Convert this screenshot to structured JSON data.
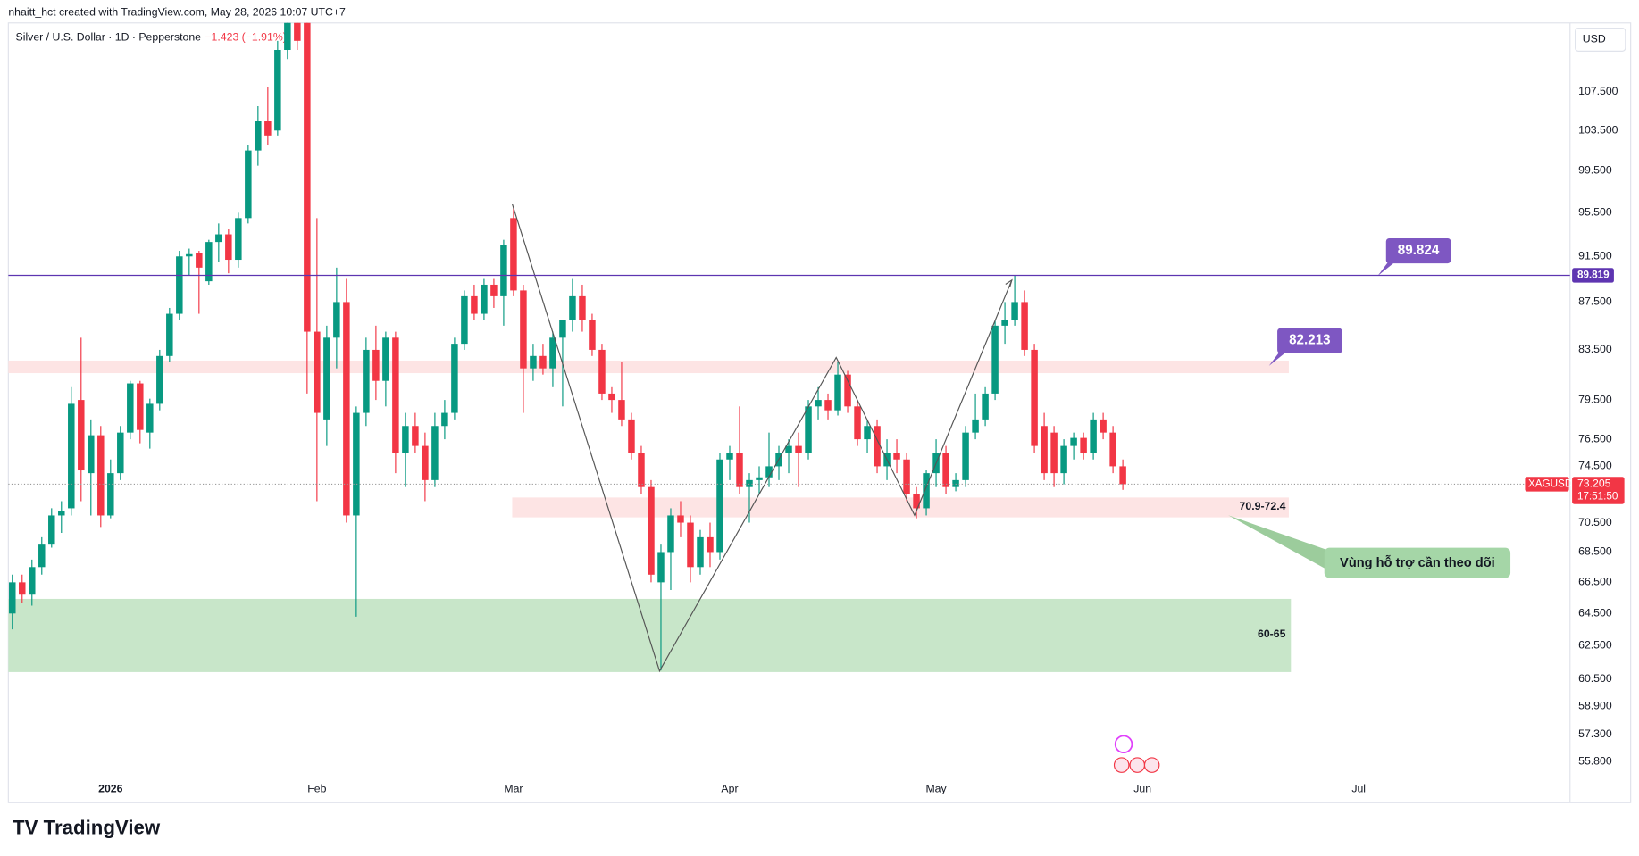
{
  "header": {
    "credit": "nhaitt_hct created with TradingView.com, May 28, 2026 10:07 UTC+7",
    "symbol": "Silver / U.S. Dollar · 1D · Pepperstone",
    "change": "−1.423 (−1.91%)",
    "currency": "USD"
  },
  "chart_data": {
    "type": "candlestick",
    "up_color": "#089981",
    "down_color": "#f23645",
    "log_scale": true,
    "grid": false,
    "open": [
      64.5,
      66.5,
      65.7,
      67.5,
      69,
      71,
      71.5,
      79.5,
      74,
      76.8,
      71,
      74,
      77,
      80.8,
      77,
      79.2,
      83,
      86.5,
      91.5,
      91.8,
      89.3,
      92.8,
      93.5,
      91.2,
      95,
      101.5,
      104.5,
      103.5,
      112,
      116,
      118,
      85,
      78,
      84.5,
      87.5,
      71,
      78.5,
      83.5,
      81,
      84.5,
      75.5,
      77.5,
      76,
      73.5,
      77.5,
      78.5,
      84,
      88,
      86.5,
      89,
      88,
      95,
      88.5,
      82,
      83,
      82,
      84.5,
      86,
      88,
      86,
      83.5,
      80,
      79.5,
      78,
      75.5,
      73,
      66.5,
      68.5,
      71,
      70.5,
      67.5,
      69.5,
      68.5,
      75,
      75.5,
      73,
      73.5,
      73.7,
      74.5,
      75.5,
      76,
      75.5,
      79,
      79.5,
      78.7,
      81.5,
      79,
      76.5,
      77.5,
      74.5,
      75.5,
      75,
      72.5,
      71.5,
      74,
      75.5,
      73,
      73.5,
      77,
      78,
      80,
      85.5,
      86,
      87.5,
      83.5,
      77.5,
      77,
      74,
      76,
      76.6,
      75.5,
      78,
      77,
      74.5
    ],
    "high": [
      67,
      67,
      68,
      69.5,
      71.5,
      72,
      80.5,
      84.5,
      78,
      77.5,
      75,
      77.5,
      81,
      81,
      79.6,
      83.5,
      87,
      92,
      92.2,
      92,
      93,
      94.5,
      94,
      95.5,
      102,
      106,
      108,
      113,
      118,
      121,
      121,
      95,
      85.5,
      90.5,
      89.5,
      79,
      84.5,
      85.5,
      85,
      85,
      78.5,
      78.5,
      77,
      78.5,
      79.5,
      84.5,
      88.5,
      89,
      89.5,
      89.5,
      93,
      96,
      89,
      84,
      84,
      85,
      86,
      89.5,
      89,
      86.5,
      84,
      80.5,
      82.5,
      78.5,
      76,
      73.5,
      69,
      71.5,
      72,
      71,
      70,
      70.5,
      75.5,
      76,
      79,
      74,
      74.5,
      77,
      76,
      76.5,
      77,
      79.5,
      80.5,
      80,
      82.5,
      81.8,
      79.5,
      78,
      78,
      76.5,
      76.5,
      75.5,
      73,
      74.2,
      76.5,
      76,
      74,
      77.5,
      80,
      80.5,
      86,
      87.5,
      89.8,
      88.5,
      84,
      78.5,
      77.5,
      76.5,
      77,
      77,
      78.5,
      78.5,
      77.5,
      75
    ],
    "low": [
      63.5,
      65.2,
      65,
      67,
      68.8,
      69.8,
      71,
      72,
      71,
      70.2,
      70.8,
      73.5,
      76.5,
      76.2,
      75.8,
      78.7,
      82.5,
      86,
      89.8,
      86.5,
      89,
      91,
      90,
      90.5,
      94.5,
      100,
      102,
      103,
      111,
      112,
      80,
      72,
      76,
      82,
      70.5,
      64.3,
      77.5,
      79.5,
      79,
      74,
      73,
      75.5,
      72,
      73,
      76.5,
      78,
      83.5,
      86,
      86,
      87,
      85.5,
      88,
      78.5,
      81,
      81.5,
      80.5,
      79,
      85,
      85,
      83,
      79.5,
      78.5,
      77.5,
      75,
      72.5,
      66.5,
      61,
      66,
      69.5,
      66.5,
      67,
      67.5,
      68,
      73.5,
      72.5,
      70.5,
      72.5,
      73,
      73.5,
      74,
      73,
      75,
      78,
      78,
      78.3,
      78.5,
      76,
      75.5,
      74,
      73.5,
      74,
      72,
      70.8,
      71,
      73,
      72.5,
      72.7,
      73,
      76.5,
      77.5,
      79.5,
      84,
      85.5,
      83,
      75.5,
      73.5,
      73,
      73.2,
      75,
      75,
      75,
      76.5,
      74,
      72.8
    ],
    "close": [
      66.5,
      65.7,
      67.5,
      69,
      71,
      71.3,
      79.2,
      74.2,
      76.8,
      71,
      74,
      77,
      80.8,
      77.2,
      79.2,
      83,
      86.5,
      91.5,
      91.7,
      90.5,
      92.8,
      93.5,
      91.2,
      95,
      101.5,
      104.5,
      103,
      112,
      116,
      113,
      85,
      78.5,
      84.5,
      87.5,
      71,
      78.5,
      83.5,
      81,
      84.5,
      75.5,
      77.5,
      76,
      73.5,
      77.5,
      78.5,
      84,
      88,
      86.5,
      89,
      88,
      92.5,
      88.5,
      82,
      83,
      82,
      84.5,
      86,
      88,
      86,
      83.5,
      80,
      79.5,
      78,
      75.5,
      73,
      67,
      68.5,
      71,
      70.5,
      67.5,
      69.5,
      68.5,
      75,
      75.5,
      73,
      73.5,
      73.7,
      74.5,
      75.5,
      76,
      75.5,
      79,
      79.5,
      78.7,
      81.5,
      79,
      76.5,
      77.5,
      74.5,
      75.5,
      75,
      72.5,
      71.5,
      74,
      75.5,
      73,
      73.5,
      77,
      78,
      80,
      85.5,
      86,
      87.5,
      83.5,
      76,
      74,
      74,
      76,
      76.6,
      75.5,
      78,
      77,
      74.5,
      73.205
    ],
    "xlim": [
      -0.4,
      158.5
    ],
    "xticks": [
      {
        "value": 10,
        "label": "2026"
      },
      {
        "value": 31,
        "label": "Feb"
      },
      {
        "value": 51,
        "label": "Mar"
      },
      {
        "value": 73,
        "label": "Apr"
      },
      {
        "value": 94,
        "label": "May"
      },
      {
        "value": 115,
        "label": "Jun"
      },
      {
        "value": 137,
        "label": "Jul"
      }
    ],
    "ylim": [
      53.7,
      115
    ],
    "yticks": [
      {
        "value": 55.8,
        "label": "55.800"
      },
      {
        "value": 57.3,
        "label": "57.300"
      },
      {
        "value": 58.9,
        "label": "58.900"
      },
      {
        "value": 60.5,
        "label": "60.500"
      },
      {
        "value": 62.5,
        "label": "62.500"
      },
      {
        "value": 64.5,
        "label": "64.500"
      },
      {
        "value": 66.5,
        "label": "66.500"
      },
      {
        "value": 68.5,
        "label": "68.500"
      },
      {
        "value": 70.5,
        "label": "70.500"
      },
      {
        "value": 74.5,
        "label": "74.500"
      },
      {
        "value": 76.5,
        "label": "76.500"
      },
      {
        "value": 79.5,
        "label": "79.500"
      },
      {
        "value": 83.5,
        "label": "83.500"
      },
      {
        "value": 87.5,
        "label": "87.500"
      },
      {
        "value": 91.5,
        "label": "91.500"
      },
      {
        "value": 95.5,
        "label": "95.500"
      },
      {
        "value": 99.5,
        "label": "99.500"
      },
      {
        "value": 103.5,
        "label": "103.500"
      },
      {
        "value": 107.5,
        "label": "107.500"
      }
    ],
    "hline": {
      "value": 89.819,
      "color": "#5e35b1"
    },
    "last_price": {
      "symbol": "XAGUSD",
      "value": 73.205,
      "countdown": "17:51:50"
    }
  },
  "annotations": {
    "resistance": "89.824",
    "mid": "82.213",
    "zone": "70.9-72.4",
    "support": "60-65",
    "note": "Vùng hỗ trợ cần theo dõi"
  },
  "footer": {
    "brand": "TradingView"
  }
}
